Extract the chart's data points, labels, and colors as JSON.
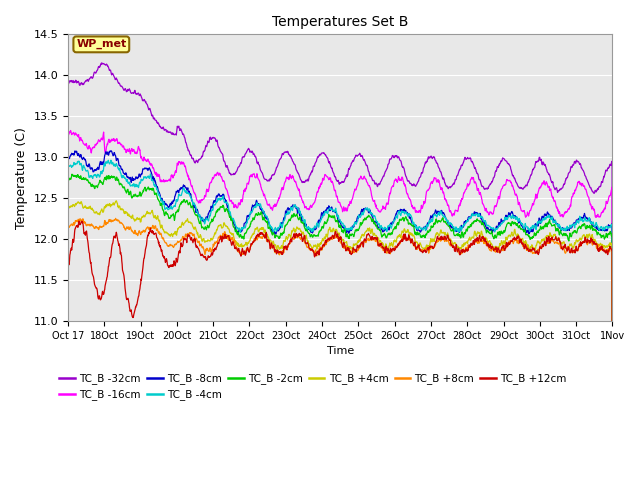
{
  "title": "Temperatures Set B",
  "xlabel": "Time",
  "ylabel": "Temperature (C)",
  "ylim": [
    11.0,
    14.5
  ],
  "yticks": [
    11.0,
    11.5,
    12.0,
    12.5,
    13.0,
    13.5,
    14.0,
    14.5
  ],
  "series": [
    {
      "label": "TC_B -32cm",
      "color": "#9900CC"
    },
    {
      "label": "TC_B -16cm",
      "color": "#FF00FF"
    },
    {
      "label": "TC_B -8cm",
      "color": "#0000CC"
    },
    {
      "label": "TC_B -4cm",
      "color": "#00CCCC"
    },
    {
      "label": "TC_B -2cm",
      "color": "#00CC00"
    },
    {
      "label": "TC_B +4cm",
      "color": "#CCCC00"
    },
    {
      "label": "TC_B +8cm",
      "color": "#FF8800"
    },
    {
      "label": "TC_B +12cm",
      "color": "#CC0000"
    }
  ],
  "wp_met_box_color": "#FFFF99",
  "wp_met_text_color": "#880000",
  "wp_met_border_color": "#886600",
  "background_color": "#E8E8E8",
  "grid_color": "#FFFFFF"
}
